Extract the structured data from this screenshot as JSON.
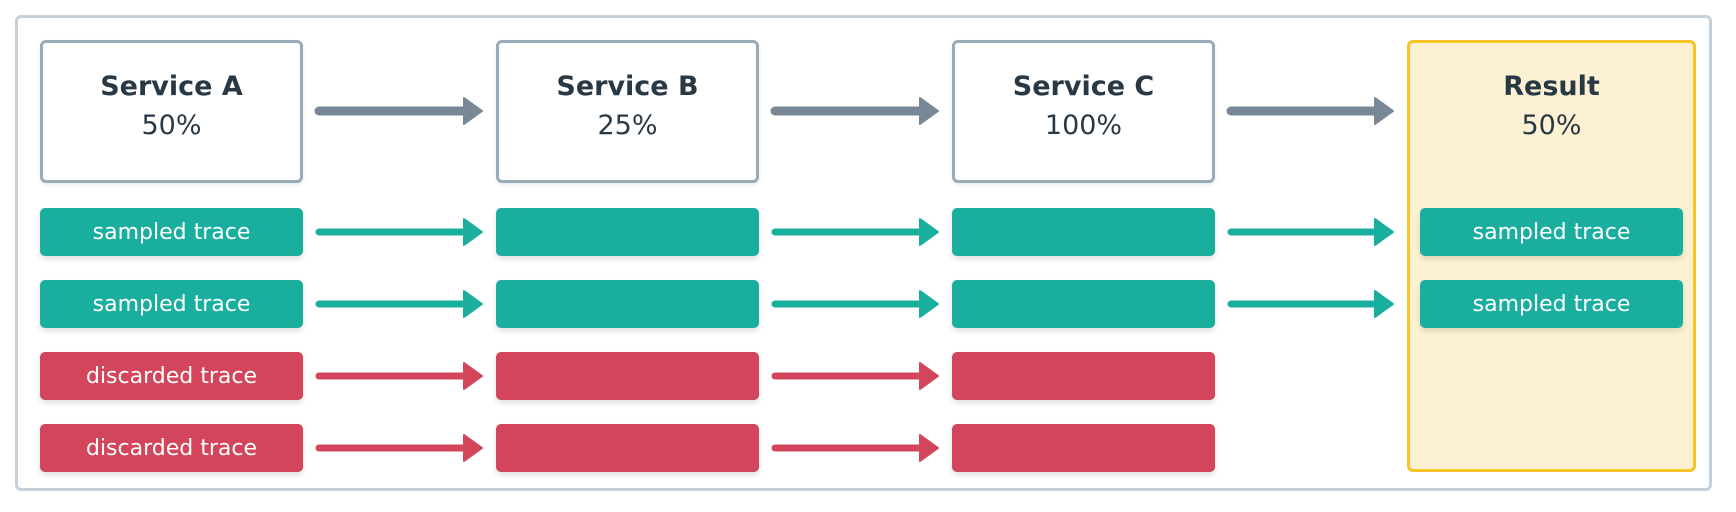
{
  "colors": {
    "sampled": "#1aae9f",
    "discarded": "#d3455b",
    "flow_arrow": "#788896",
    "result_bg": "#fcf1d3",
    "result_border": "#f7c325"
  },
  "services": [
    {
      "name": "Service A",
      "rate": "50%"
    },
    {
      "name": "Service B",
      "rate": "25%"
    },
    {
      "name": "Service C",
      "rate": "100%"
    }
  ],
  "result": {
    "name": "Result",
    "rate": "50%"
  },
  "rows": [
    {
      "status": "sampled",
      "label": "sampled trace",
      "reaches_result": true
    },
    {
      "status": "sampled",
      "label": "sampled trace",
      "reaches_result": true
    },
    {
      "status": "discarded",
      "label": "discarded trace",
      "reaches_result": false
    },
    {
      "status": "discarded",
      "label": "discarded trace",
      "reaches_result": false
    }
  ]
}
